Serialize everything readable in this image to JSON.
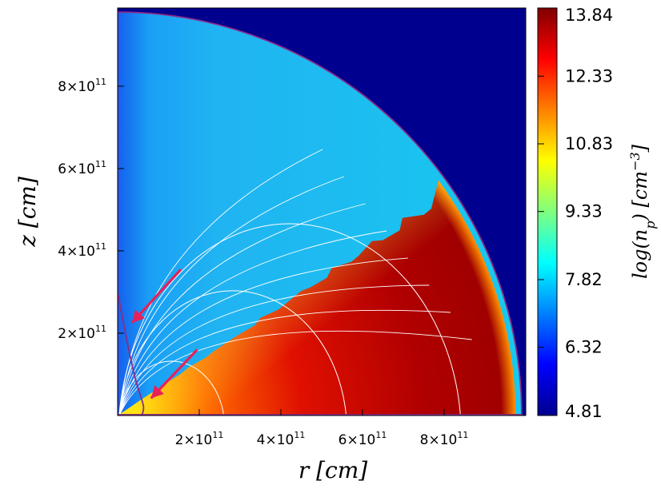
{
  "chart_data": {
    "type": "heatmap",
    "title": "",
    "xlabel": "r [cm]",
    "ylabel": "z [cm]",
    "xlim": [
      0,
      1000000000000.0
    ],
    "ylim": [
      0,
      990000000000.0
    ],
    "x_ticks": [
      {
        "value": 200000000000.0,
        "mant": "2×10",
        "exp": "11"
      },
      {
        "value": 400000000000.0,
        "mant": "4×10",
        "exp": "11"
      },
      {
        "value": 600000000000.0,
        "mant": "6×10",
        "exp": "11"
      },
      {
        "value": 800000000000.0,
        "mant": "8×10",
        "exp": "11"
      }
    ],
    "y_ticks": [
      {
        "value": 200000000000.0,
        "mant": "2×10",
        "exp": "11"
      },
      {
        "value": 400000000000.0,
        "mant": "4×10",
        "exp": "11"
      },
      {
        "value": 600000000000.0,
        "mant": "6×10",
        "exp": "11"
      },
      {
        "value": 800000000000.0,
        "mant": "8×10",
        "exp": "11"
      }
    ],
    "colorbar": {
      "label": "log(n_p) [cm^-3]",
      "label_pre": "log(n",
      "label_sub": "p",
      "label_mid": ") [cm",
      "label_sup": "−3",
      "label_post": "]",
      "colormap": "jet",
      "ticks": [
        "4.81",
        "6.32",
        "7.82",
        "9.33",
        "10.83",
        "12.33",
        "13.84"
      ],
      "range": [
        4.81,
        13.84
      ]
    },
    "regions": {
      "domain_outer_radius": 990000000000.0,
      "wind_density_log_range": [
        7.0,
        8.3
      ],
      "disk_density_log_range": [
        10.5,
        13.8
      ],
      "disk_opening_angle_deg": 34,
      "background_log": 4.81
    },
    "field_lines": {
      "color": "#ffffff",
      "arcs_radii": [
        260000000000.0,
        560000000000.0,
        840000000000.0
      ],
      "fan_lines": 8
    },
    "boundary_color": "#8a2b8a",
    "arrows": [
      {
        "color": "#e8215a",
        "from": [
          155000000000.0,
          355000000000.0
        ],
        "to": [
          35000000000.0,
          225000000000.0
        ]
      },
      {
        "color": "#e8215a",
        "from": [
          195000000000.0,
          160000000000.0
        ],
        "to": [
          82000000000.0,
          42000000000.0
        ]
      }
    ]
  }
}
